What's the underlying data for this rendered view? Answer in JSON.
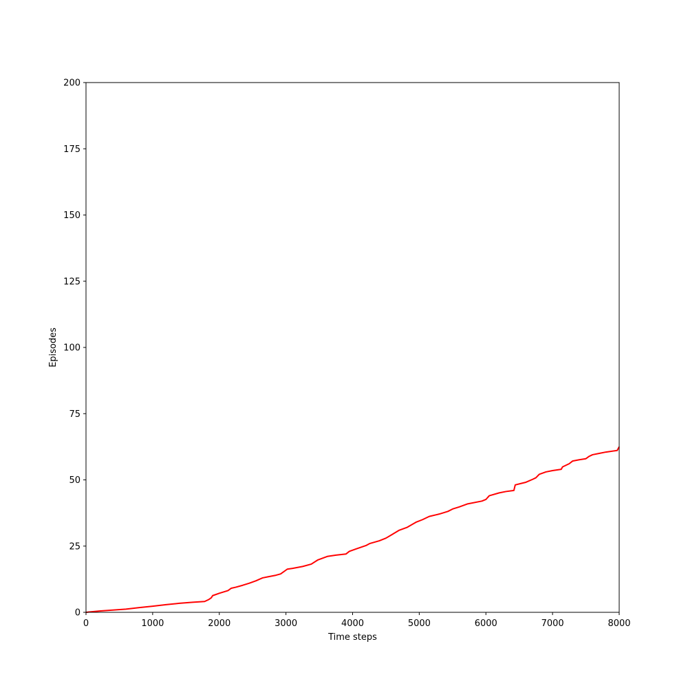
{
  "chart_data": {
    "type": "line",
    "title": "",
    "xlabel": "Time steps",
    "ylabel": "Episodes",
    "xlim": [
      0,
      8000
    ],
    "ylim": [
      0,
      200
    ],
    "xticks": [
      0,
      1000,
      2000,
      3000,
      4000,
      5000,
      6000,
      7000,
      8000
    ],
    "yticks": [
      0,
      25,
      50,
      75,
      100,
      125,
      150,
      175,
      200
    ],
    "grid": false,
    "legend": "none",
    "series": [
      {
        "color": "#ff0000",
        "x": [
          0,
          200,
          600,
          800,
          1000,
          1200,
          1400,
          1600,
          1780,
          1840,
          1880,
          1900,
          2000,
          2130,
          2180,
          2250,
          2350,
          2450,
          2550,
          2650,
          2730,
          2850,
          2920,
          2960,
          3020,
          3100,
          3250,
          3380,
          3480,
          3620,
          3750,
          3900,
          3950,
          4050,
          4200,
          4260,
          4400,
          4500,
          4580,
          4700,
          4820,
          4950,
          5050,
          5150,
          5300,
          5430,
          5500,
          5600,
          5720,
          5940,
          6000,
          6050,
          6200,
          6300,
          6420,
          6440,
          6520,
          6600,
          6700,
          6750,
          6800,
          6900,
          7000,
          7130,
          7150,
          7250,
          7300,
          7400,
          7500,
          7550,
          7600,
          7700,
          7800,
          7970,
          8000
        ],
        "y": [
          0,
          0.5,
          1.2,
          1.8,
          2.3,
          2.9,
          3.4,
          3.8,
          4.1,
          4.8,
          5.5,
          6.3,
          7.2,
          8.2,
          9.1,
          9.5,
          10.2,
          11.0,
          11.9,
          13.0,
          13.4,
          14.0,
          14.5,
          15.2,
          16.3,
          16.6,
          17.3,
          18.2,
          19.8,
          21.1,
          21.6,
          22.0,
          23.0,
          23.9,
          25.2,
          26.0,
          27.0,
          28.0,
          29.2,
          31.0,
          32.1,
          34.0,
          35.0,
          36.2,
          37.1,
          38.1,
          39.0,
          39.8,
          40.9,
          42.0,
          42.6,
          44.0,
          45.1,
          45.6,
          46.0,
          48.1,
          48.6,
          49.1,
          50.2,
          50.8,
          52.1,
          53.0,
          53.5,
          54.0,
          54.9,
          56.1,
          57.1,
          57.6,
          58.0,
          58.9,
          59.5,
          60.0,
          60.5,
          61.1,
          62.5
        ]
      }
    ]
  }
}
